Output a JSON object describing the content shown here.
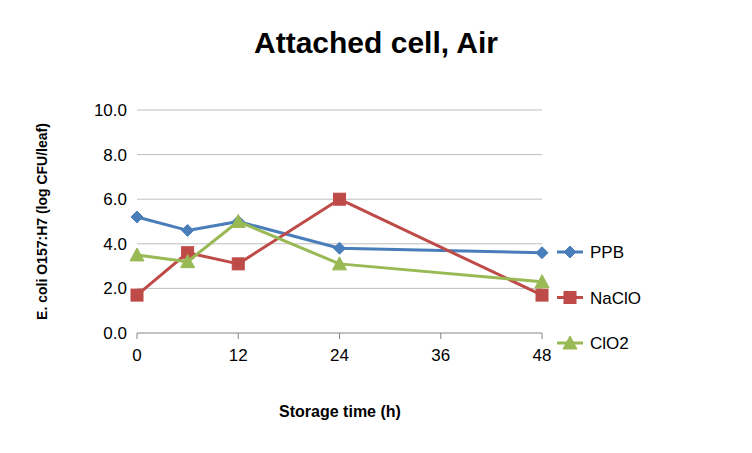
{
  "chart_data": {
    "type": "line",
    "title": "Attached cell, Air",
    "x_label": "Storage time (h)",
    "y_label": "E. coli O157:H7  (log CFU/leaf)",
    "x": [
      0,
      6,
      12,
      24,
      48
    ],
    "xlim": [
      0,
      48
    ],
    "xticks": [
      0,
      12,
      24,
      36,
      48
    ],
    "ylim": [
      0,
      10
    ],
    "yticks": [
      {
        "value": 0,
        "label": "0.0"
      },
      {
        "value": 2,
        "label": "2.0"
      },
      {
        "value": 4,
        "label": "4.0"
      },
      {
        "value": 6,
        "label": "6.0"
      },
      {
        "value": 8,
        "label": "8.0"
      },
      {
        "value": 10,
        "label": "10.0"
      }
    ],
    "grid": true,
    "legend": "right",
    "series": [
      {
        "name": "PPB",
        "color": "#4a7ebb",
        "marker": "diamond",
        "values": [
          5.2,
          4.6,
          5.0,
          3.8,
          3.6
        ]
      },
      {
        "name": "NaClO",
        "color": "#be4b48",
        "marker": "square",
        "values": [
          1.7,
          3.6,
          3.1,
          6.0,
          1.7
        ]
      },
      {
        "name": "ClO2",
        "color": "#98b954",
        "marker": "triangle",
        "values": [
          3.5,
          3.2,
          5.0,
          3.1,
          2.3
        ]
      }
    ]
  }
}
